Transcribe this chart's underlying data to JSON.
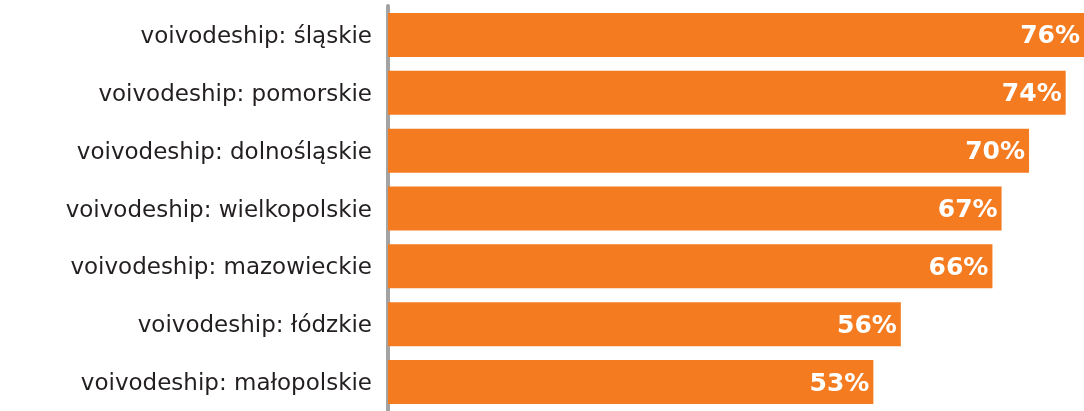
{
  "chart_data": {
    "type": "bar",
    "orientation": "horizontal",
    "categories": [
      "voivodeship: śląskie",
      "voivodeship: pomorskie",
      "voivodeship: dolnośląskie",
      "voivodeship: wielkopolskie",
      "voivodeship: mazowieckie",
      "voivodeship: łódzkie",
      "voivodeship: małopolskie"
    ],
    "values": [
      76,
      74,
      70,
      67,
      66,
      56,
      53
    ],
    "value_labels": [
      "76%",
      "74%",
      "70%",
      "67%",
      "66%",
      "56%",
      "53%"
    ],
    "color": "#f47b20"
  }
}
